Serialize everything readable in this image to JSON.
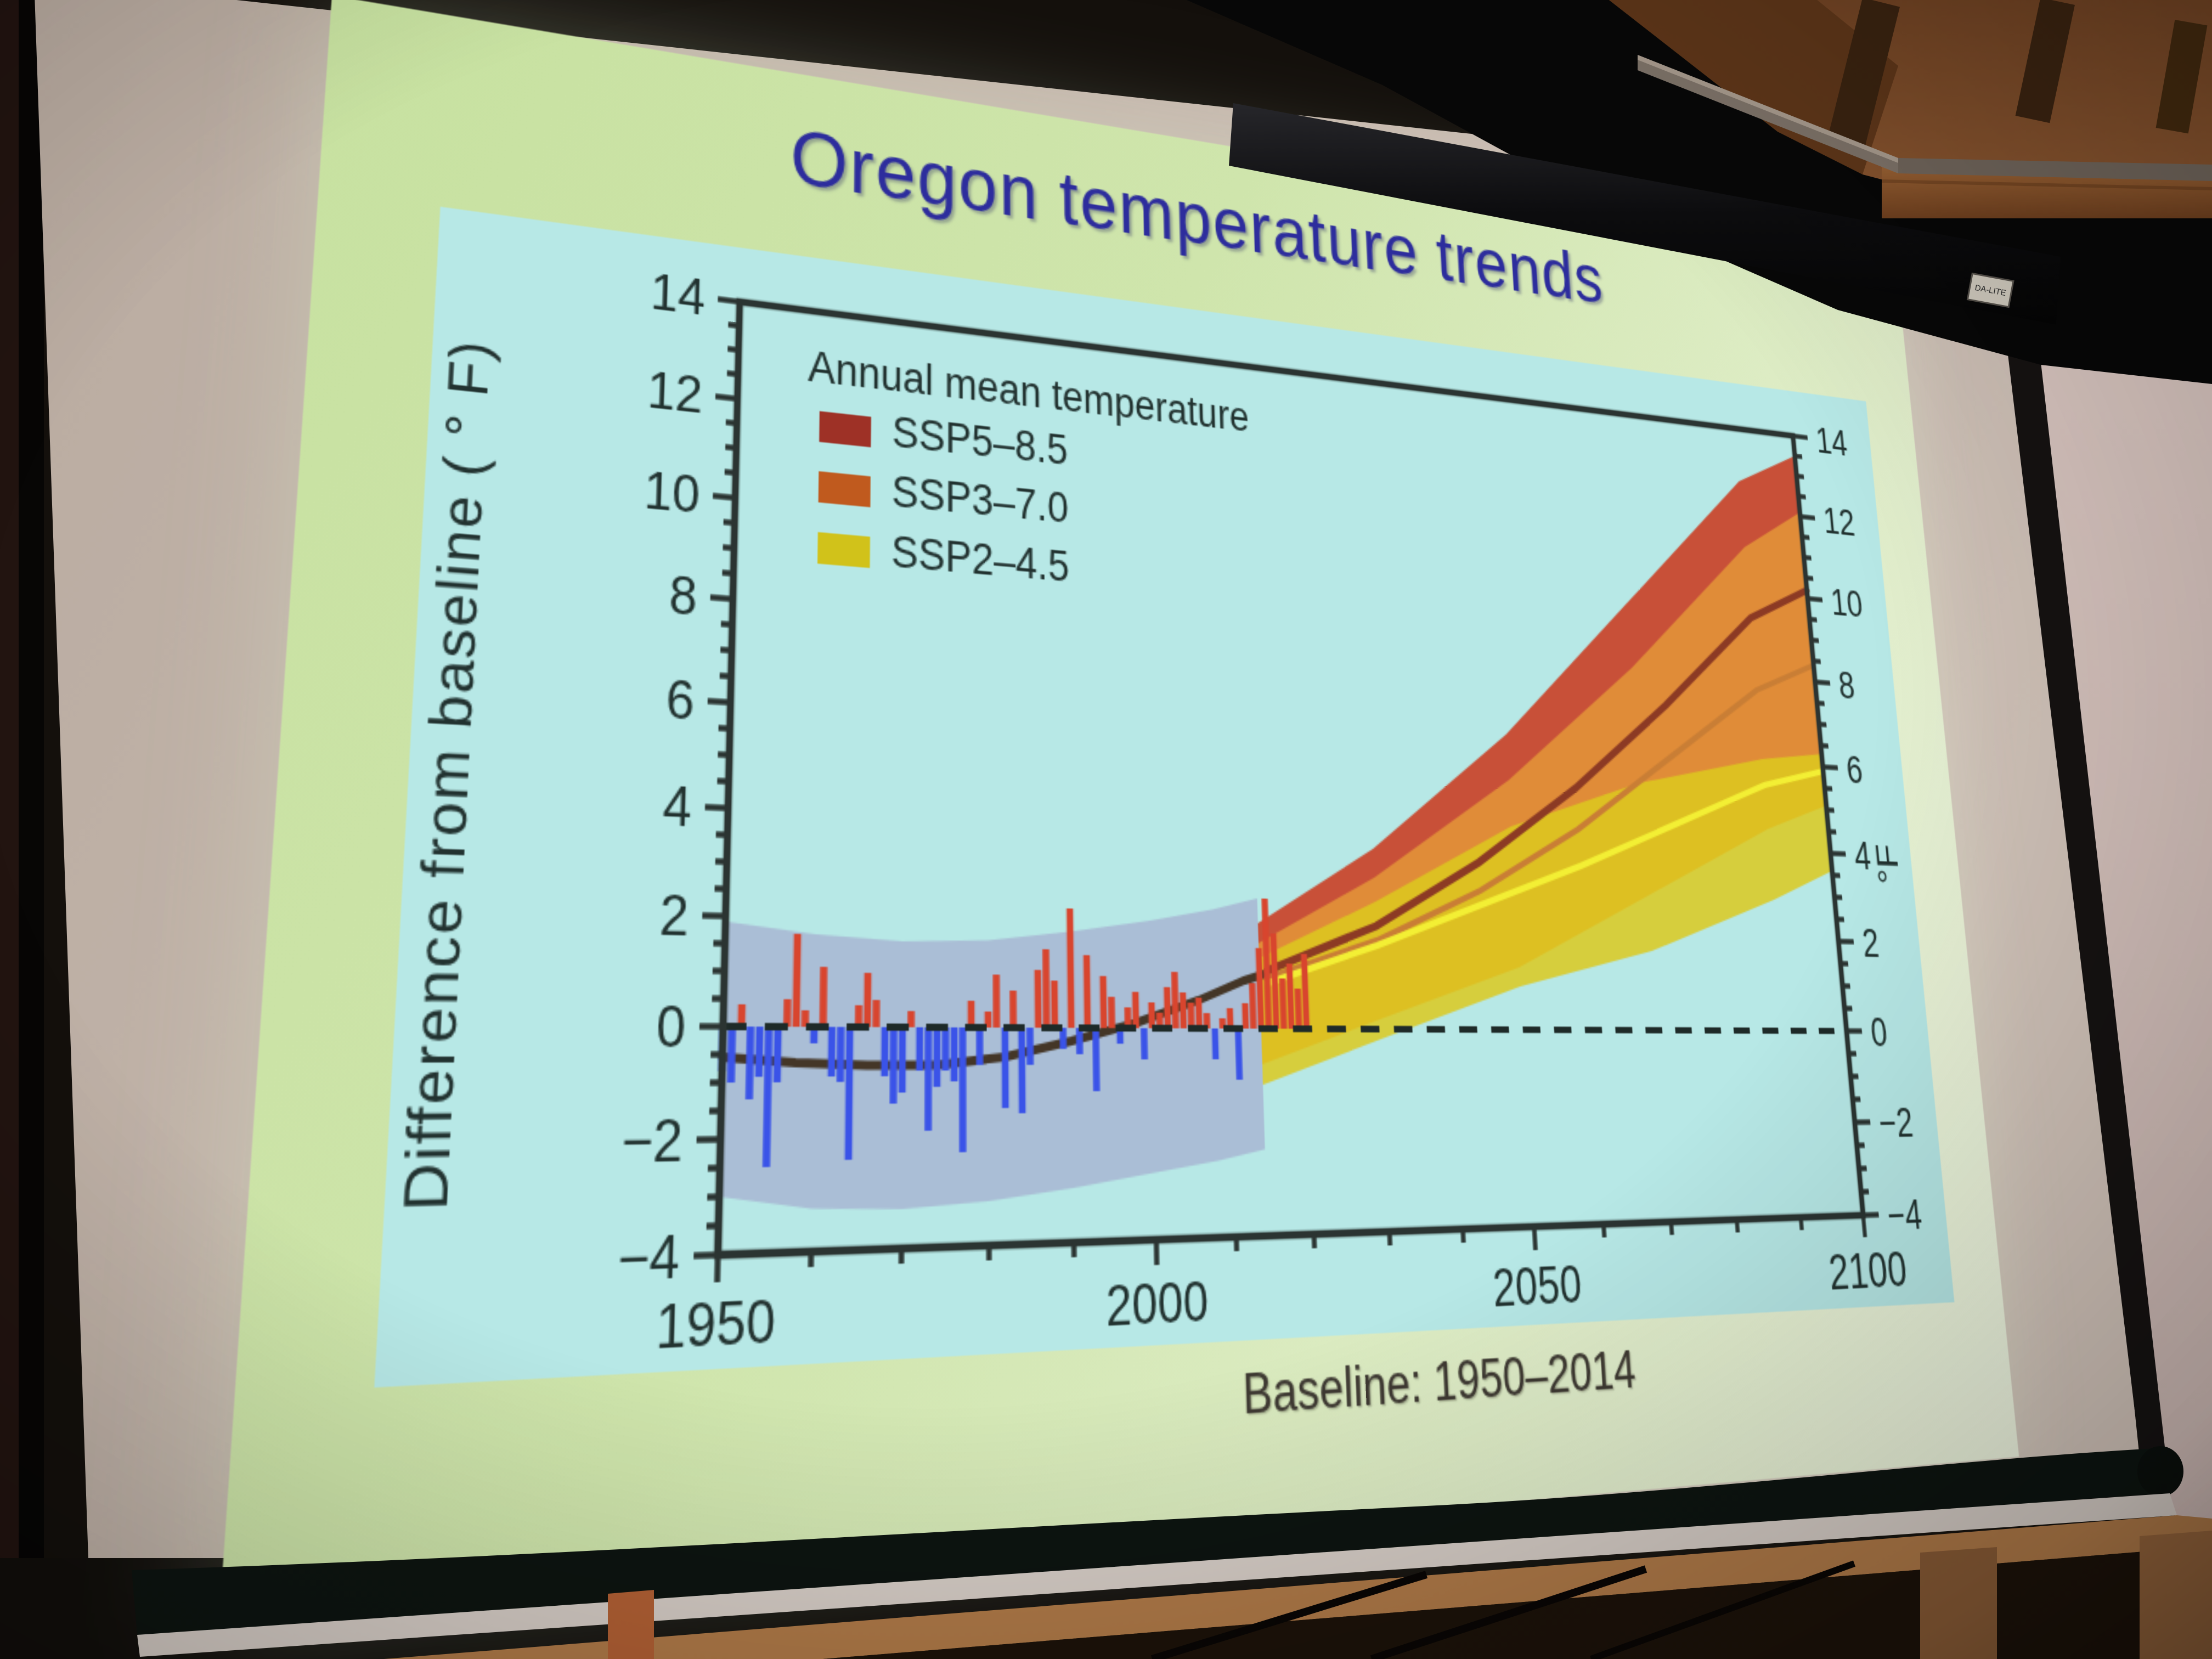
{
  "scene": {
    "setting": "photograph of a presentation slide projected on a pull-down screen in a wood-ceiling room",
    "screen_casing_label": "DA-LITE",
    "colors": {
      "slide_background": "#cfe5ac",
      "plot_background": "#b7e8e6",
      "screen_surround": "#c3b4ac",
      "wood_ceiling": "#7a4a26"
    }
  },
  "slide": {
    "title": "Oregon temperature trends",
    "caption": "Baseline: 1950–2014"
  },
  "chart_data": {
    "type": "composite",
    "subtypes": [
      "bar",
      "area-band",
      "line"
    ],
    "title": "Oregon temperature trends",
    "xlabel": "",
    "ylabel_left": "Difference from baseline ( ° F)",
    "ylabel_right": "°F",
    "xlim": [
      1950,
      2100
    ],
    "ylim": [
      -4,
      14
    ],
    "x_major_ticks": [
      1950,
      2000,
      2050,
      2100
    ],
    "x_minor_step": 10,
    "y_major_step": 2,
    "y_minor_step": 0.5,
    "y_tick_labels": [
      "−4",
      "−2",
      "0",
      "2",
      "4",
      "6",
      "8",
      "10",
      "12",
      "14"
    ],
    "grid": false,
    "zero_line": {
      "y": 0,
      "style": "dashed",
      "color": "#1e2a28"
    },
    "legend": {
      "position": "upper-left",
      "header": "Annual mean temperature",
      "items": [
        {
          "label": "SSP5–8.5",
          "color": "#9e3126"
        },
        {
          "label": "SSP3–7.0",
          "color": "#c05a1e"
        },
        {
          "label": "SSP2–4.5",
          "color": "#d1c21a"
        }
      ]
    },
    "bars": {
      "name": "annual mean temperature anomaly",
      "start_year": 1950,
      "values": [
        -0.8,
        -1.0,
        0.4,
        -1.3,
        -0.9,
        -2.5,
        -1.0,
        0.5,
        1.7,
        0.3,
        -0.3,
        1.1,
        -0.9,
        -1.0,
        -2.4,
        0.4,
        1.0,
        0.5,
        -0.9,
        -1.4,
        -1.2,
        0.3,
        -0.8,
        -1.9,
        -1.1,
        -0.8,
        -1.0,
        -2.3,
        0.5,
        -0.7,
        0.3,
        1.0,
        -1.5,
        0.7,
        -1.6,
        -0.7,
        1.1,
        1.5,
        0.9,
        -0.4,
        2.3,
        -0.5,
        1.4,
        -1.2,
        1.0,
        0.6,
        -0.3,
        0.4,
        0.7,
        -0.6,
        0.5,
        0.3,
        0.8,
        1.1,
        0.7,
        0.5,
        0.6,
        0.3,
        -0.6,
        0.2,
        0.4,
        -1.0,
        0.5,
        0.9,
        1.6,
        2.6,
        1.9,
        1.0,
        1.3,
        0.8,
        1.5
      ],
      "color_positive": "#d8452e",
      "color_negative": "#3a53e8"
    },
    "baseline_envelope": {
      "label": "historical model envelope",
      "color": "#a8b6d2",
      "opacity": 0.85,
      "points": [
        [
          1950,
          -3.0,
          1.9
        ],
        [
          1960,
          -3.25,
          1.7
        ],
        [
          1970,
          -3.3,
          1.6
        ],
        [
          1980,
          -3.2,
          1.65
        ],
        [
          1990,
          -3.0,
          1.85
        ],
        [
          2000,
          -2.75,
          2.1
        ],
        [
          2008,
          -2.55,
          2.35
        ],
        [
          2014,
          -2.35,
          2.6
        ]
      ]
    },
    "historical_smoothed": {
      "label": "smoothed historical mean",
      "color": "#443627",
      "points": [
        [
          1950,
          -0.55
        ],
        [
          1958,
          -0.65
        ],
        [
          1966,
          -0.7
        ],
        [
          1974,
          -0.7
        ],
        [
          1982,
          -0.55
        ],
        [
          1990,
          -0.25
        ],
        [
          1998,
          0.1
        ],
        [
          2006,
          0.55
        ],
        [
          2012,
          0.95
        ],
        [
          2016,
          1.15
        ]
      ]
    },
    "projections": [
      {
        "name": "SSP5–8.5",
        "band_color": "#c85038",
        "band_opacity": 1,
        "median_color": "#8c3a24",
        "band": [
          [
            2014,
            -0.4,
            2.1
          ],
          [
            2030,
            0.6,
            3.7
          ],
          [
            2050,
            2.1,
            6.3
          ],
          [
            2070,
            4.1,
            9.5
          ],
          [
            2090,
            6.1,
            12.7
          ],
          [
            2100,
            6.6,
            13.5
          ]
        ],
        "median": [
          [
            2015,
            1.15
          ],
          [
            2030,
            2.1
          ],
          [
            2045,
            3.5
          ],
          [
            2060,
            5.2
          ],
          [
            2075,
            7.2
          ],
          [
            2090,
            9.4
          ],
          [
            2100,
            10.2
          ]
        ]
      },
      {
        "name": "SSP3–7.0",
        "band_color": "#e08c38",
        "band_opacity": 1,
        "median_color": "#c97e35",
        "band": [
          [
            2014,
            -0.7,
            1.7
          ],
          [
            2030,
            0.2,
            3.1
          ],
          [
            2050,
            1.3,
            5.3
          ],
          [
            2070,
            2.9,
            8.0
          ],
          [
            2090,
            4.5,
            11.1
          ],
          [
            2100,
            5.1,
            12.1
          ]
        ],
        "median": [
          [
            2015,
            1.0
          ],
          [
            2030,
            1.8
          ],
          [
            2045,
            2.9
          ],
          [
            2060,
            4.3
          ],
          [
            2075,
            6.0
          ],
          [
            2090,
            7.7
          ],
          [
            2100,
            8.4
          ]
        ]
      },
      {
        "name": "SSP2–4.5",
        "band_color": "#dcc91e",
        "band_opacity": 0.85,
        "median_color": "#f3ef34",
        "band": [
          [
            2014,
            -1.1,
            1.4
          ],
          [
            2030,
            -0.2,
            2.6
          ],
          [
            2050,
            0.9,
            4.3
          ],
          [
            2070,
            1.7,
            5.4
          ],
          [
            2090,
            2.9,
            6.1
          ],
          [
            2100,
            3.6,
            6.3
          ]
        ],
        "median": [
          [
            2015,
            0.9
          ],
          [
            2030,
            1.7
          ],
          [
            2045,
            2.6
          ],
          [
            2060,
            3.5
          ],
          [
            2075,
            4.5
          ],
          [
            2090,
            5.5
          ],
          [
            2100,
            5.9
          ]
        ]
      }
    ],
    "annotations": {
      "baseline_note": "Baseline: 1950–2014"
    }
  }
}
